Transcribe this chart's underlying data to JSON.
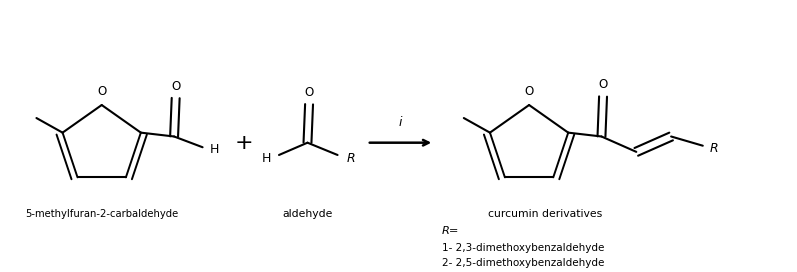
{
  "title": "",
  "background_color": "#ffffff",
  "figsize": [
    7.97,
    2.72
  ],
  "dpi": 100,
  "label_5mf": "5-methylfuran-2-carbaldehyde",
  "label_aldehyde": "aldehyde",
  "label_product": "curcumin derivatives",
  "label_condition": "i",
  "label_R": "R=",
  "label_R1": "1- 2,3-dimethoxybenzaldehyde",
  "label_R2": "2- 2,5-dimethoxybenzaldehyde",
  "text_color": "#000000",
  "line_color": "#000000"
}
